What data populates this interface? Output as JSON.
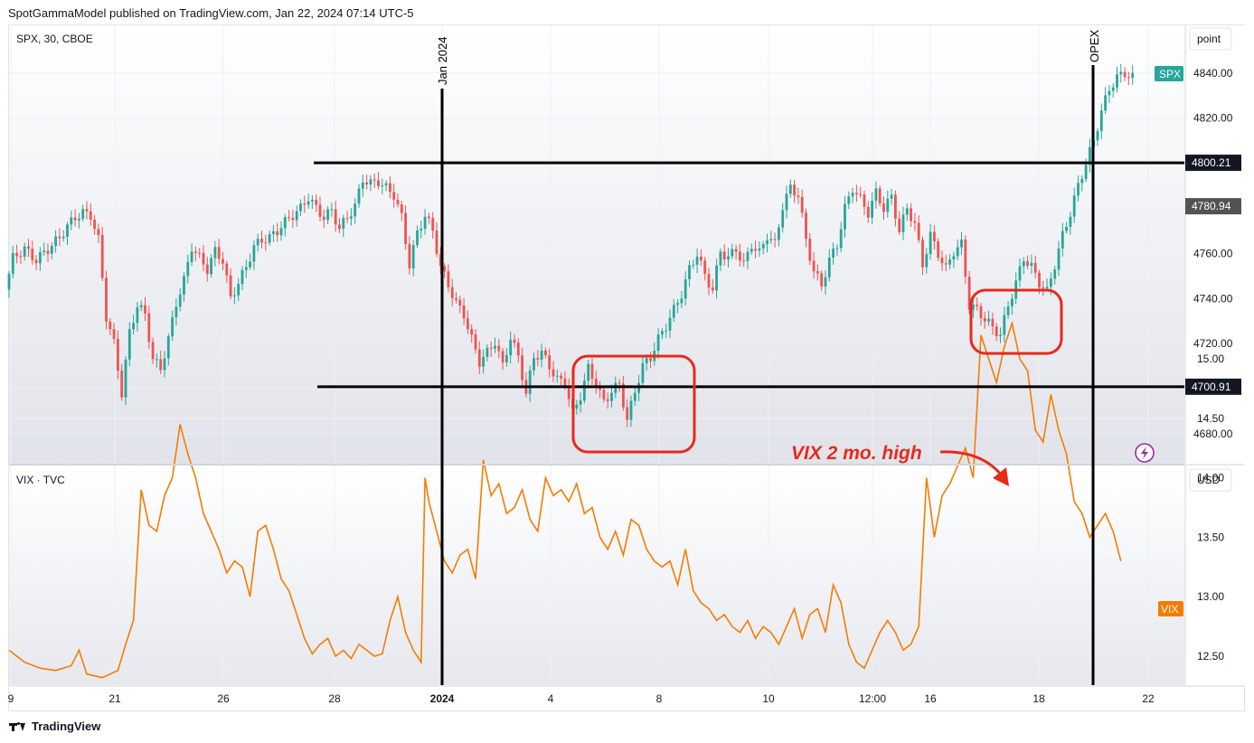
{
  "header": {
    "published": "SpotGammaModel published on TradingView.com, Jan 22, 2024 07:14 UTC-5"
  },
  "footer": {
    "brand": "TradingView"
  },
  "colors": {
    "up": "#26a69a",
    "down": "#ef5350",
    "vix": "#f57c00",
    "annotation": "#e8291c",
    "grid": "#eef0f3"
  },
  "chart_data": [
    {
      "type": "candlestick",
      "title": "SPX, 30, CBOE",
      "unit_label": "point",
      "y_ticks": [
        4680,
        4700,
        4720,
        4740,
        4760,
        4780,
        4800,
        4820,
        4840
      ],
      "ylim": [
        4672,
        4856
      ],
      "x_ticks": [
        "9",
        "21",
        "26",
        "28",
        "2024",
        "4",
        "8",
        "10",
        "12:00",
        "16",
        "18",
        "22"
      ],
      "last_label": "SPX",
      "badges": [
        {
          "text": "4800.21",
          "value": 4800.21
        },
        {
          "text": "4780.94",
          "value": 4780.94
        },
        {
          "text": "4700.91",
          "value": 4700.91
        }
      ],
      "vertical_markers": [
        "Jan 2024",
        "OPEX"
      ],
      "close_path": [
        [
          0,
          4744
        ],
        [
          2,
          4758
        ],
        [
          5,
          4762
        ],
        [
          8,
          4757
        ],
        [
          11,
          4762
        ],
        [
          14,
          4767
        ],
        [
          16,
          4772
        ],
        [
          18,
          4776
        ],
        [
          20,
          4778
        ],
        [
          22,
          4777
        ],
        [
          24,
          4766
        ],
        [
          26,
          4732
        ],
        [
          28,
          4720
        ],
        [
          30,
          4698
        ],
        [
          32,
          4725
        ],
        [
          34,
          4737
        ],
        [
          36,
          4733
        ],
        [
          38,
          4713
        ],
        [
          40,
          4709
        ],
        [
          42,
          4722
        ],
        [
          44,
          4738
        ],
        [
          46,
          4748
        ],
        [
          48,
          4763
        ],
        [
          50,
          4758
        ],
        [
          52,
          4753
        ],
        [
          54,
          4761
        ],
        [
          56,
          4757
        ],
        [
          58,
          4740
        ],
        [
          60,
          4747
        ],
        [
          62,
          4754
        ],
        [
          64,
          4763
        ],
        [
          66,
          4766
        ],
        [
          68,
          4767
        ],
        [
          70,
          4770
        ],
        [
          72,
          4774
        ],
        [
          74,
          4777
        ],
        [
          76,
          4780
        ],
        [
          78,
          4785
        ],
        [
          80,
          4780
        ],
        [
          82,
          4776
        ],
        [
          84,
          4779
        ],
        [
          86,
          4771
        ],
        [
          88,
          4776
        ],
        [
          90,
          4781
        ],
        [
          92,
          4793
        ],
        [
          94,
          4791
        ],
        [
          96,
          4792
        ],
        [
          98,
          4789
        ],
        [
          100,
          4786
        ],
        [
          102,
          4776
        ],
        [
          104,
          4755
        ],
        [
          106,
          4769
        ],
        [
          108,
          4777
        ],
        [
          110,
          4770
        ],
        [
          112,
          4754
        ],
        [
          114,
          4746
        ],
        [
          116,
          4738
        ],
        [
          118,
          4733
        ],
        [
          120,
          4722
        ],
        [
          122,
          4712
        ],
        [
          124,
          4716
        ],
        [
          126,
          4721
        ],
        [
          128,
          4710
        ],
        [
          130,
          4723
        ],
        [
          132,
          4714
        ],
        [
          134,
          4698
        ],
        [
          136,
          4714
        ],
        [
          138,
          4716
        ],
        [
          140,
          4710
        ],
        [
          142,
          4704
        ],
        [
          144,
          4703
        ],
        [
          146,
          4689
        ],
        [
          148,
          4697
        ],
        [
          150,
          4709
        ],
        [
          152,
          4702
        ],
        [
          154,
          4694
        ],
        [
          156,
          4699
        ],
        [
          158,
          4702
        ],
        [
          160,
          4686
        ],
        [
          162,
          4699
        ],
        [
          164,
          4710
        ],
        [
          166,
          4714
        ],
        [
          168,
          4722
        ],
        [
          170,
          4728
        ],
        [
          172,
          4735
        ],
        [
          174,
          4742
        ],
        [
          176,
          4753
        ],
        [
          178,
          4760
        ],
        [
          180,
          4750
        ],
        [
          182,
          4744
        ],
        [
          184,
          4761
        ],
        [
          186,
          4758
        ],
        [
          188,
          4762
        ],
        [
          190,
          4755
        ],
        [
          192,
          4764
        ],
        [
          194,
          4760
        ],
        [
          196,
          4768
        ],
        [
          198,
          4764
        ],
        [
          200,
          4781
        ],
        [
          202,
          4789
        ],
        [
          204,
          4786
        ],
        [
          206,
          4766
        ],
        [
          208,
          4752
        ],
        [
          210,
          4746
        ],
        [
          212,
          4757
        ],
        [
          214,
          4764
        ],
        [
          216,
          4780
        ],
        [
          218,
          4789
        ],
        [
          220,
          4784
        ],
        [
          222,
          4778
        ],
        [
          224,
          4787
        ],
        [
          226,
          4780
        ],
        [
          228,
          4785
        ],
        [
          230,
          4770
        ],
        [
          232,
          4780
        ],
        [
          234,
          4773
        ],
        [
          236,
          4755
        ],
        [
          238,
          4768
        ],
        [
          240,
          4760
        ],
        [
          242,
          4753
        ],
        [
          244,
          4761
        ],
        [
          246,
          4764
        ],
        [
          248,
          4737
        ],
        [
          250,
          4735
        ],
        [
          252,
          4731
        ],
        [
          254,
          4727
        ],
        [
          256,
          4724
        ],
        [
          258,
          4737
        ],
        [
          260,
          4747
        ],
        [
          262,
          4758
        ],
        [
          264,
          4754
        ],
        [
          266,
          4747
        ],
        [
          268,
          4743
        ],
        [
          270,
          4755
        ],
        [
          272,
          4768
        ],
        [
          274,
          4778
        ],
        [
          276,
          4790
        ],
        [
          278,
          4800
        ],
        [
          280,
          4810
        ],
        [
          282,
          4823
        ],
        [
          284,
          4833
        ],
        [
          286,
          4838
        ],
        [
          288,
          4840
        ],
        [
          290,
          4838
        ]
      ]
    },
    {
      "type": "line",
      "title": "VIX · TVC",
      "unit_label": "USD",
      "y_ticks": [
        12.5,
        13.0,
        13.5,
        14.0,
        14.5,
        15.0
      ],
      "ylim": [
        12.2,
        15.5
      ],
      "series": [
        {
          "name": "VIX",
          "values": [
            [
              0,
              12.55
            ],
            [
              4,
              12.45
            ],
            [
              8,
              12.4
            ],
            [
              12,
              12.38
            ],
            [
              16,
              12.42
            ],
            [
              18,
              12.55
            ],
            [
              20,
              12.35
            ],
            [
              24,
              12.32
            ],
            [
              28,
              12.38
            ],
            [
              30,
              12.6
            ],
            [
              32,
              12.8
            ],
            [
              34,
              13.9
            ],
            [
              36,
              13.6
            ],
            [
              38,
              13.55
            ],
            [
              40,
              13.85
            ],
            [
              42,
              14.0
            ],
            [
              44,
              14.45
            ],
            [
              46,
              14.2
            ],
            [
              48,
              14.0
            ],
            [
              50,
              13.7
            ],
            [
              52,
              13.55
            ],
            [
              54,
              13.4
            ],
            [
              56,
              13.2
            ],
            [
              58,
              13.3
            ],
            [
              60,
              13.25
            ],
            [
              62,
              13.0
            ],
            [
              64,
              13.55
            ],
            [
              66,
              13.6
            ],
            [
              68,
              13.4
            ],
            [
              70,
              13.15
            ],
            [
              72,
              13.05
            ],
            [
              74,
              12.85
            ],
            [
              76,
              12.65
            ],
            [
              78,
              12.52
            ],
            [
              80,
              12.6
            ],
            [
              82,
              12.65
            ],
            [
              84,
              12.5
            ],
            [
              86,
              12.55
            ],
            [
              88,
              12.48
            ],
            [
              90,
              12.6
            ],
            [
              92,
              12.55
            ],
            [
              94,
              12.5
            ],
            [
              96,
              12.52
            ],
            [
              98,
              12.8
            ],
            [
              100,
              13.0
            ],
            [
              102,
              12.7
            ],
            [
              104,
              12.55
            ],
            [
              106,
              12.45
            ],
            [
              107,
              14.0
            ],
            [
              108,
              13.8
            ],
            [
              110,
              13.55
            ],
            [
              112,
              13.3
            ],
            [
              114,
              13.2
            ],
            [
              116,
              13.35
            ],
            [
              118,
              13.4
            ],
            [
              120,
              13.15
            ],
            [
              122,
              14.15
            ],
            [
              124,
              13.85
            ],
            [
              126,
              13.95
            ],
            [
              128,
              13.7
            ],
            [
              130,
              13.75
            ],
            [
              132,
              13.9
            ],
            [
              134,
              13.65
            ],
            [
              136,
              13.55
            ],
            [
              138,
              14.0
            ],
            [
              140,
              13.85
            ],
            [
              142,
              13.9
            ],
            [
              144,
              13.8
            ],
            [
              146,
              13.95
            ],
            [
              148,
              13.7
            ],
            [
              150,
              13.75
            ],
            [
              152,
              13.5
            ],
            [
              154,
              13.4
            ],
            [
              156,
              13.55
            ],
            [
              158,
              13.35
            ],
            [
              160,
              13.65
            ],
            [
              162,
              13.6
            ],
            [
              164,
              13.4
            ],
            [
              166,
              13.3
            ],
            [
              168,
              13.25
            ],
            [
              170,
              13.3
            ],
            [
              172,
              13.1
            ],
            [
              174,
              13.4
            ],
            [
              176,
              13.05
            ],
            [
              178,
              12.95
            ],
            [
              180,
              12.9
            ],
            [
              182,
              12.8
            ],
            [
              184,
              12.85
            ],
            [
              186,
              12.75
            ],
            [
              188,
              12.7
            ],
            [
              190,
              12.8
            ],
            [
              192,
              12.65
            ],
            [
              194,
              12.75
            ],
            [
              196,
              12.7
            ],
            [
              198,
              12.6
            ],
            [
              200,
              12.75
            ],
            [
              202,
              12.9
            ],
            [
              204,
              12.65
            ],
            [
              206,
              12.85
            ],
            [
              208,
              12.9
            ],
            [
              210,
              12.7
            ],
            [
              212,
              13.1
            ],
            [
              214,
              12.95
            ],
            [
              216,
              12.6
            ],
            [
              218,
              12.45
            ],
            [
              220,
              12.4
            ],
            [
              222,
              12.55
            ],
            [
              224,
              12.7
            ],
            [
              226,
              12.8
            ],
            [
              228,
              12.7
            ],
            [
              230,
              12.55
            ],
            [
              232,
              12.6
            ],
            [
              234,
              12.75
            ],
            [
              236,
              14.0
            ],
            [
              238,
              13.5
            ],
            [
              240,
              13.85
            ],
            [
              242,
              13.95
            ],
            [
              244,
              14.1
            ],
            [
              246,
              14.25
            ],
            [
              248,
              14.0
            ],
            [
              250,
              15.2
            ],
            [
              252,
              15.0
            ],
            [
              254,
              14.8
            ],
            [
              256,
              15.1
            ],
            [
              258,
              15.3
            ],
            [
              260,
              15.0
            ],
            [
              262,
              14.9
            ],
            [
              264,
              14.4
            ],
            [
              266,
              14.3
            ],
            [
              268,
              14.7
            ],
            [
              270,
              14.4
            ],
            [
              272,
              14.2
            ],
            [
              274,
              13.8
            ],
            [
              276,
              13.7
            ],
            [
              278,
              13.5
            ],
            [
              280,
              13.6
            ],
            [
              282,
              13.7
            ],
            [
              284,
              13.55
            ],
            [
              286,
              13.3
            ]
          ]
        }
      ],
      "annotation": "VIX 2 mo. high"
    }
  ]
}
